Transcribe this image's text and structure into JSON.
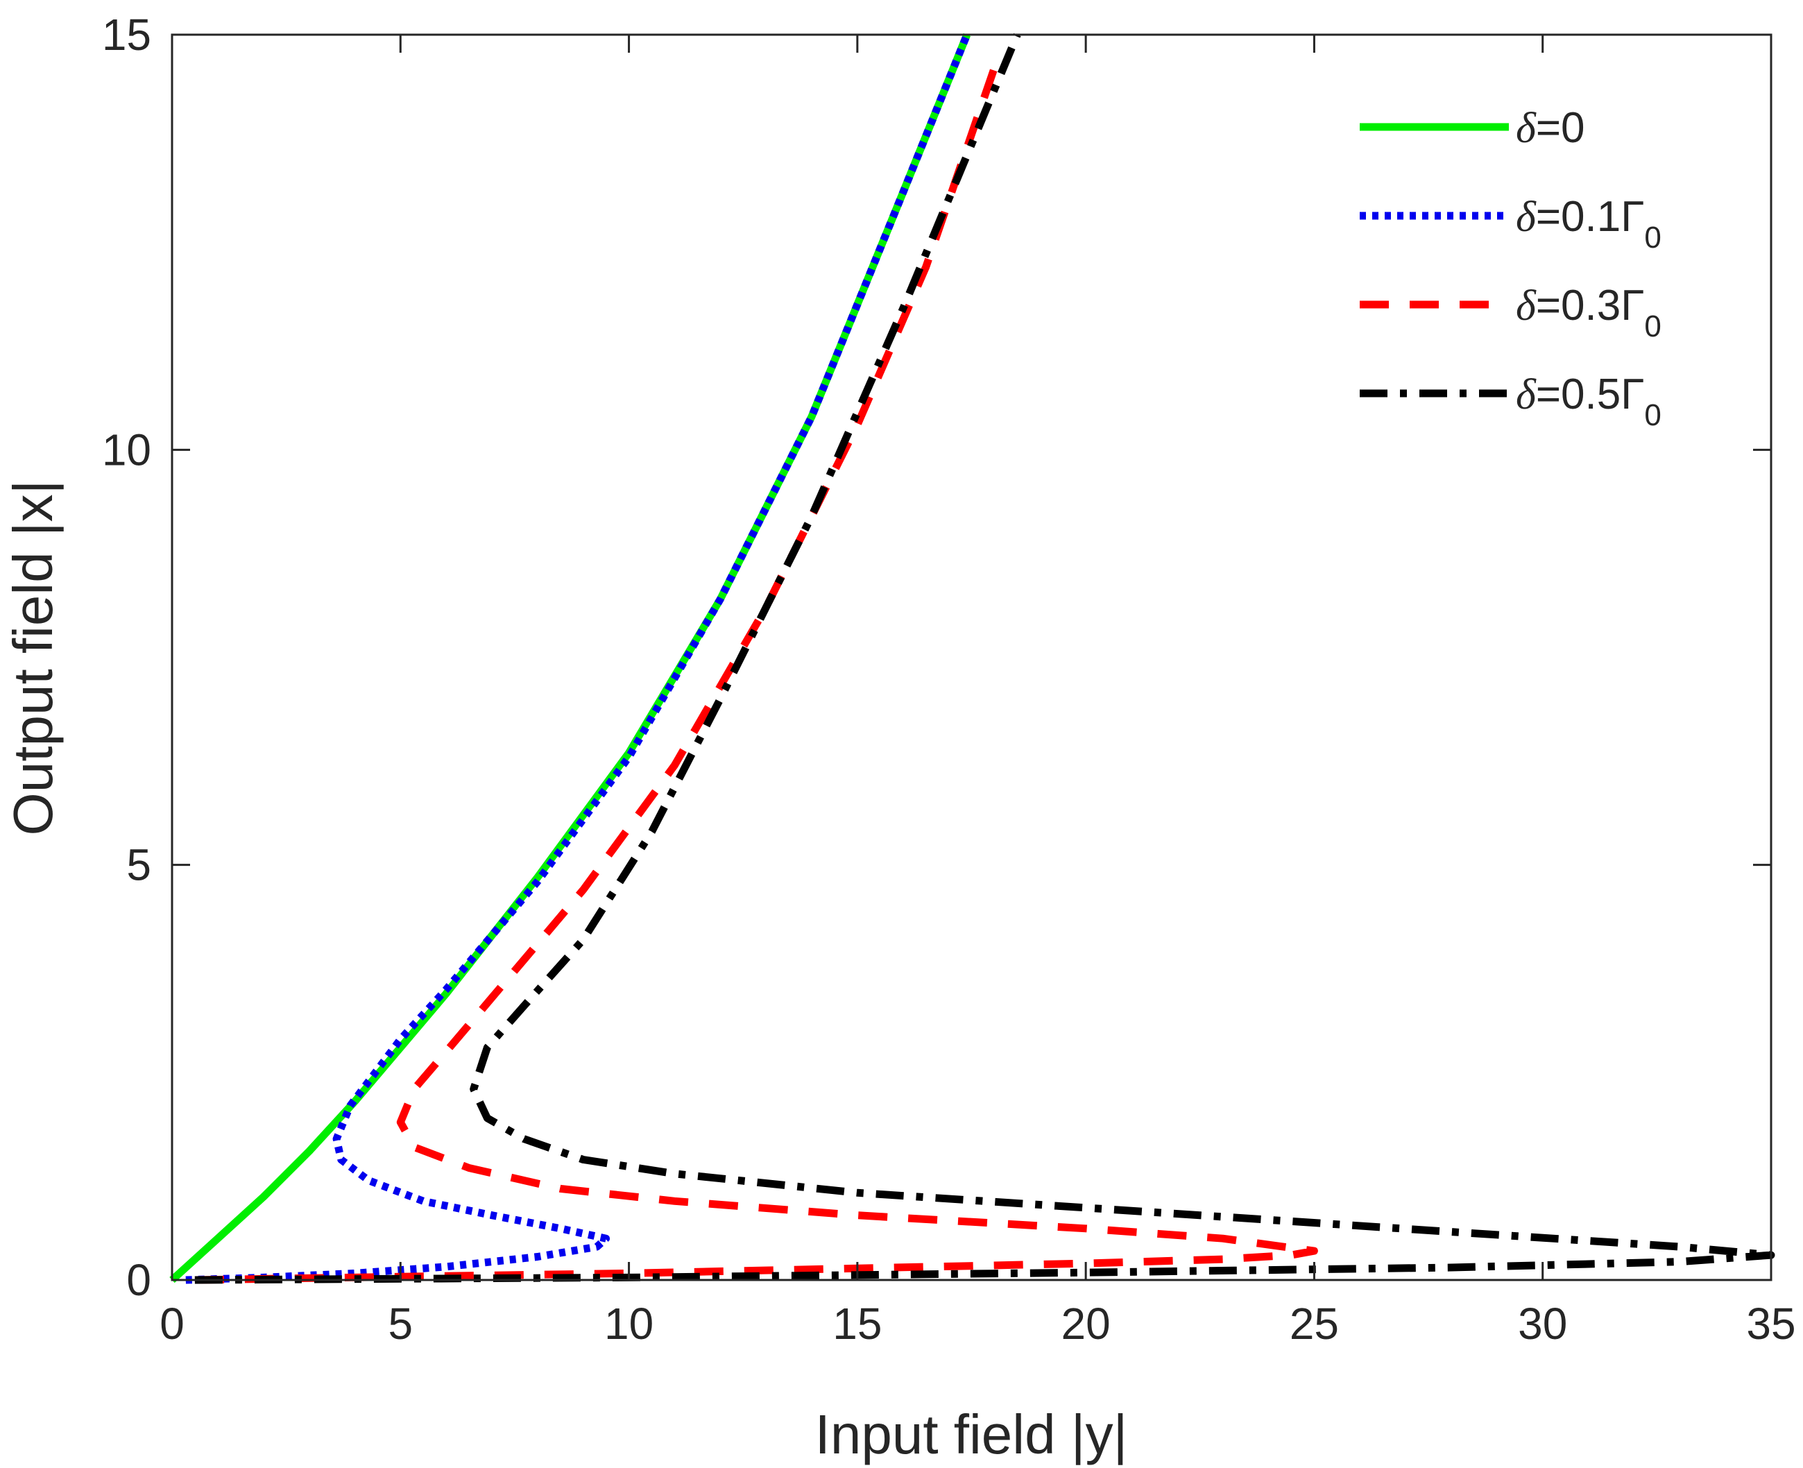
{
  "chart_data": {
    "type": "line",
    "xlabel": "Input field |y|",
    "ylabel": "Output field |x|",
    "xlim": [
      0,
      35
    ],
    "ylim": [
      0,
      15
    ],
    "xticks": [
      0,
      5,
      10,
      15,
      20,
      25,
      30,
      35
    ],
    "xtick_labels": [
      "0",
      "5",
      "10",
      "15",
      "20",
      "25",
      "30",
      "35"
    ],
    "yticks": [
      0,
      5,
      10,
      15
    ],
    "ytick_labels": [
      "0",
      "5",
      "10",
      "15"
    ],
    "grid": false,
    "legend_position": "top-right",
    "series": [
      {
        "name": "δ=0",
        "legend": {
          "symbol": "δ",
          "text": "=0",
          "sub": ""
        },
        "color": "#00ee00",
        "style": "solid",
        "points": [
          [
            0,
            0
          ],
          [
            1,
            0.5
          ],
          [
            2,
            1.0
          ],
          [
            3,
            1.55
          ],
          [
            4,
            2.15
          ],
          [
            5,
            2.8
          ],
          [
            6,
            3.45
          ],
          [
            8,
            4.85
          ],
          [
            10,
            6.35
          ],
          [
            12,
            8.2
          ],
          [
            14,
            10.4
          ],
          [
            16,
            13.1
          ],
          [
            17.4,
            15
          ]
        ]
      },
      {
        "name": "δ=0.1Γ0",
        "legend": {
          "symbol": "δ",
          "text": "=0.1Γ",
          "sub": "0"
        },
        "color": "#0000ee",
        "style": "dotted",
        "points": [
          [
            0.3,
            0
          ],
          [
            2,
            0.03
          ],
          [
            4,
            0.08
          ],
          [
            6,
            0.16
          ],
          [
            8,
            0.28
          ],
          [
            9.3,
            0.4
          ],
          [
            9.5,
            0.5
          ],
          [
            8.5,
            0.62
          ],
          [
            7,
            0.78
          ],
          [
            5.5,
            0.95
          ],
          [
            4.3,
            1.2
          ],
          [
            3.7,
            1.45
          ],
          [
            3.6,
            1.7
          ],
          [
            3.9,
            2.1
          ],
          [
            5,
            2.9
          ],
          [
            6,
            3.5
          ],
          [
            8,
            4.8
          ],
          [
            10,
            6.3
          ],
          [
            12,
            8.2
          ],
          [
            14,
            10.4
          ],
          [
            16,
            13.1
          ],
          [
            17.4,
            15
          ]
        ]
      },
      {
        "name": "δ=0.3Γ0",
        "legend": {
          "symbol": "δ",
          "text": "=0.3Γ",
          "sub": "0"
        },
        "color": "#ff0000",
        "style": "dashed",
        "points": [
          [
            0.5,
            0
          ],
          [
            5,
            0.04
          ],
          [
            10,
            0.08
          ],
          [
            15,
            0.14
          ],
          [
            20,
            0.2
          ],
          [
            23,
            0.25
          ],
          [
            24.5,
            0.3
          ],
          [
            25,
            0.35
          ],
          [
            23,
            0.5
          ],
          [
            20,
            0.62
          ],
          [
            15,
            0.78
          ],
          [
            11,
            0.95
          ],
          [
            8.5,
            1.1
          ],
          [
            6.5,
            1.35
          ],
          [
            5.3,
            1.6
          ],
          [
            5,
            1.9
          ],
          [
            5.3,
            2.3
          ],
          [
            6,
            2.75
          ],
          [
            7,
            3.4
          ],
          [
            9,
            4.7
          ],
          [
            11,
            6.2
          ],
          [
            13,
            8.1
          ],
          [
            15,
            10.3
          ],
          [
            16.5,
            12.2
          ],
          [
            18,
            14.6
          ]
        ]
      },
      {
        "name": "δ=0.5Γ0",
        "legend": {
          "symbol": "δ",
          "text": "=0.5Γ",
          "sub": "0"
        },
        "color": "#000000",
        "style": "dashdot",
        "points": [
          [
            0.5,
            0
          ],
          [
            10,
            0.03
          ],
          [
            20,
            0.09
          ],
          [
            28,
            0.15
          ],
          [
            33,
            0.22
          ],
          [
            35,
            0.3
          ],
          [
            33,
            0.4
          ],
          [
            28,
            0.58
          ],
          [
            20,
            0.87
          ],
          [
            15,
            1.05
          ],
          [
            11,
            1.28
          ],
          [
            9,
            1.45
          ],
          [
            7.7,
            1.7
          ],
          [
            6.9,
            1.95
          ],
          [
            6.6,
            2.3
          ],
          [
            6.9,
            2.8
          ],
          [
            7.7,
            3.3
          ],
          [
            9,
            4.1
          ],
          [
            10.5,
            5.4
          ],
          [
            12,
            7.0
          ],
          [
            14,
            9.2
          ],
          [
            16,
            11.7
          ],
          [
            18.5,
            15
          ]
        ]
      }
    ]
  }
}
